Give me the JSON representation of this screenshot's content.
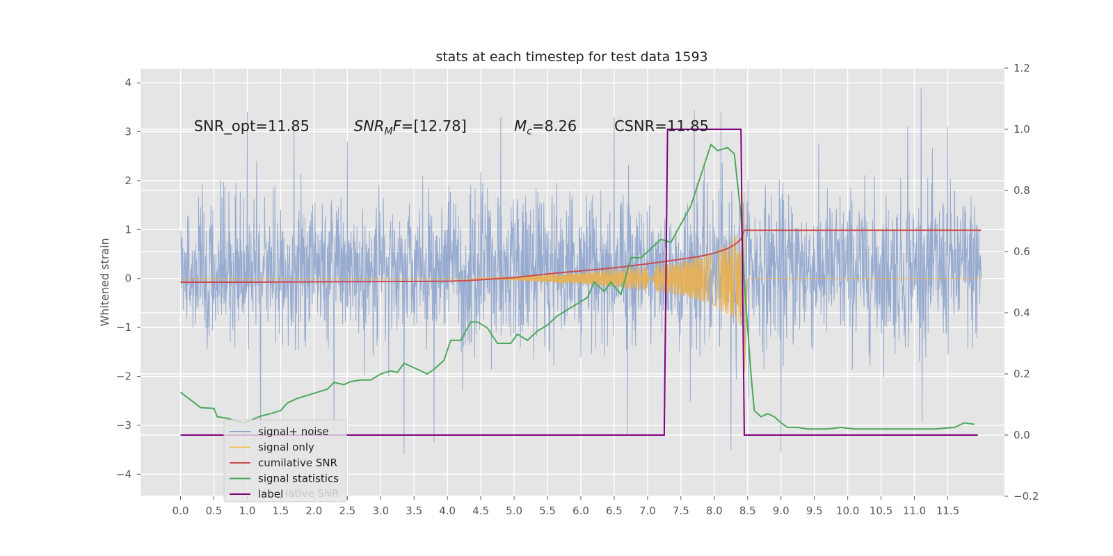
{
  "chart_data": {
    "type": "line",
    "title": "stats at each timestep for test data 1593",
    "ylabel": "Whitened strain",
    "xlabel": "",
    "xlim": [
      -0.6,
      12.35
    ],
    "ylim": [
      -4.45,
      4.3
    ],
    "y2lim": [
      -0.2,
      1.2
    ],
    "grid": true,
    "x_ticks": [
      0.0,
      0.5,
      1.0,
      1.5,
      2.0,
      2.5,
      3.0,
      3.5,
      4.0,
      4.5,
      5.0,
      5.5,
      6.0,
      6.5,
      7.0,
      7.5,
      8.0,
      8.5,
      9.0,
      9.5,
      10.0,
      10.5,
      11.0,
      11.5
    ],
    "x_tick_labels": [
      "0.0",
      "0.5",
      "1.0",
      "1.5",
      "2.0",
      "2.5",
      "3.0",
      "3.5",
      "4.0",
      "4.5",
      "5.0",
      "5.5",
      "6.0",
      "6.5",
      "7.0",
      "7.5",
      "8.0",
      "8.5",
      "9.0",
      "9.5",
      "10.0",
      "10.5",
      "11.0",
      "11.5"
    ],
    "y_ticks": [
      -4,
      -3,
      -2,
      -1,
      0,
      1,
      2,
      3,
      4
    ],
    "y_tick_labels": [
      "−4",
      "−3",
      "−2",
      "−1",
      "0",
      "1",
      "2",
      "3",
      "4"
    ],
    "y2_ticks": [
      -0.2,
      0.0,
      0.2,
      0.4,
      0.6,
      0.8,
      1.0,
      1.2
    ],
    "y2_tick_labels": [
      "−0.2",
      "0.0",
      "0.2",
      "0.4",
      "0.6",
      "0.8",
      "1.0",
      "1.2"
    ],
    "annotations": [
      {
        "text": "SNR_opt=11.85",
        "x": 0.2,
        "y": 3.13,
        "math": false
      },
      {
        "text_main": "SNR",
        "text_sub": "M",
        "text_after": "F=[12.78]",
        "x": 2.6,
        "y": 3.13,
        "math": true
      },
      {
        "text_main": "M",
        "text_sub": "c",
        "text_after": "=8.26",
        "x": 5.0,
        "y": 3.13,
        "math": true
      },
      {
        "text": "CSNR=11.85",
        "x": 6.5,
        "y": 3.13,
        "math": false
      }
    ],
    "legend": {
      "placement": "lower-left",
      "entries": [
        {
          "label": "signal+ noise",
          "color": "#8fa6cc"
        },
        {
          "label": "signal only",
          "color": "#f2c45a"
        },
        {
          "label": "cumilative SNR",
          "color": "#cc4b4b"
        },
        {
          "label": "signal statistics",
          "color": "#4aa85a"
        },
        {
          "label": "label",
          "color": "#800080"
        }
      ],
      "ghost_text": "lative SNR"
    },
    "series": [
      {
        "name": "signal+ noise",
        "axis": "left",
        "color": "#92a8cf",
        "x_range": [
          0.0,
          12.0
        ],
        "typical_band": [
          -1.4,
          1.8
        ],
        "peak_range": [
          -3.6,
          3.9
        ],
        "spikes": [
          {
            "x": 1.0,
            "y": 3.4
          },
          {
            "x": 1.2,
            "y": -3.0
          },
          {
            "x": 1.7,
            "y": 3.1
          },
          {
            "x": 2.3,
            "y": -3.1
          },
          {
            "x": 2.5,
            "y": 2.8
          },
          {
            "x": 3.35,
            "y": -3.6
          },
          {
            "x": 3.8,
            "y": -3.35
          },
          {
            "x": 4.8,
            "y": 3.3
          },
          {
            "x": 6.0,
            "y": 1.4
          },
          {
            "x": 6.0,
            "y": -1.6
          },
          {
            "x": 6.5,
            "y": 3.3
          },
          {
            "x": 6.7,
            "y": -3.2
          },
          {
            "x": 7.7,
            "y": 3.45
          },
          {
            "x": 8.1,
            "y": 3.4
          },
          {
            "x": 8.25,
            "y": -3.5
          },
          {
            "x": 9.0,
            "y": -3.55
          },
          {
            "x": 10.9,
            "y": 3.1
          },
          {
            "x": 11.1,
            "y": 3.9
          },
          {
            "x": 11.5,
            "y": 3.1
          }
        ]
      },
      {
        "name": "signal only",
        "axis": "left",
        "color": "#e8b050",
        "x_range": [
          0.0,
          12.0
        ],
        "chirp_start": 4.3,
        "merger_time": 8.45,
        "envelope": [
          [
            4.3,
            0.0
          ],
          [
            5.0,
            0.04
          ],
          [
            6.0,
            0.12
          ],
          [
            7.0,
            0.25
          ],
          [
            7.5,
            0.35
          ],
          [
            8.0,
            0.55
          ],
          [
            8.3,
            0.85
          ],
          [
            8.42,
            1.0
          ],
          [
            8.45,
            -2.0
          ]
        ]
      },
      {
        "name": "cumilative SNR",
        "axis": "right",
        "color": "#cc4b4b",
        "x": [
          0.0,
          1.0,
          2.0,
          3.0,
          4.0,
          4.3,
          5.0,
          5.5,
          6.0,
          6.5,
          7.0,
          7.5,
          7.8,
          8.0,
          8.2,
          8.3,
          8.4,
          8.45,
          12.0
        ],
        "y": [
          0.5,
          0.5,
          0.501,
          0.502,
          0.503,
          0.505,
          0.515,
          0.527,
          0.537,
          0.547,
          0.56,
          0.575,
          0.585,
          0.595,
          0.61,
          0.622,
          0.64,
          0.67,
          0.67
        ]
      },
      {
        "name": "signal statistics",
        "axis": "right",
        "color": "#4aa85a",
        "x": [
          0.0,
          0.15,
          0.3,
          0.5,
          0.55,
          0.7,
          0.85,
          0.95,
          1.05,
          1.2,
          1.35,
          1.5,
          1.6,
          1.75,
          1.9,
          2.05,
          2.2,
          2.3,
          2.45,
          2.55,
          2.7,
          2.85,
          3.0,
          3.15,
          3.25,
          3.35,
          3.45,
          3.55,
          3.7,
          3.8,
          3.95,
          4.05,
          4.2,
          4.35,
          4.45,
          4.6,
          4.75,
          4.95,
          5.05,
          5.2,
          5.35,
          5.5,
          5.65,
          5.8,
          5.95,
          6.1,
          6.2,
          6.35,
          6.45,
          6.6,
          6.75,
          6.9,
          7.0,
          7.1,
          7.2,
          7.35,
          7.5,
          7.65,
          7.8,
          7.95,
          8.05,
          8.2,
          8.3,
          8.4,
          8.45,
          8.55,
          8.6,
          8.7,
          8.8,
          8.9,
          9.0,
          9.1,
          9.25,
          9.4,
          9.55,
          9.7,
          9.9,
          10.1,
          10.3,
          10.5,
          10.8,
          11.0,
          11.3,
          11.6,
          11.75,
          11.9
        ],
        "y": [
          0.14,
          0.115,
          0.09,
          0.087,
          0.06,
          0.055,
          0.045,
          0.04,
          0.048,
          0.062,
          0.07,
          0.08,
          0.105,
          0.12,
          0.13,
          0.14,
          0.15,
          0.172,
          0.165,
          0.175,
          0.18,
          0.18,
          0.2,
          0.21,
          0.205,
          0.235,
          0.225,
          0.215,
          0.2,
          0.215,
          0.245,
          0.31,
          0.31,
          0.37,
          0.37,
          0.35,
          0.3,
          0.3,
          0.33,
          0.31,
          0.34,
          0.36,
          0.39,
          0.41,
          0.43,
          0.45,
          0.5,
          0.47,
          0.5,
          0.46,
          0.58,
          0.58,
          0.6,
          0.62,
          0.64,
          0.63,
          0.69,
          0.75,
          0.85,
          0.95,
          0.93,
          0.94,
          0.92,
          0.72,
          0.5,
          0.2,
          0.08,
          0.06,
          0.07,
          0.06,
          0.04,
          0.025,
          0.025,
          0.02,
          0.02,
          0.02,
          0.025,
          0.02,
          0.02,
          0.02,
          0.02,
          0.02,
          0.02,
          0.025,
          0.04,
          0.035
        ]
      },
      {
        "name": "label",
        "axis": "right",
        "color": "#800080",
        "x": [
          0.0,
          7.25,
          7.3,
          8.4,
          8.45,
          11.95
        ],
        "y": [
          0.0,
          0.0,
          1.0,
          1.0,
          0.0,
          0.0
        ]
      }
    ]
  }
}
